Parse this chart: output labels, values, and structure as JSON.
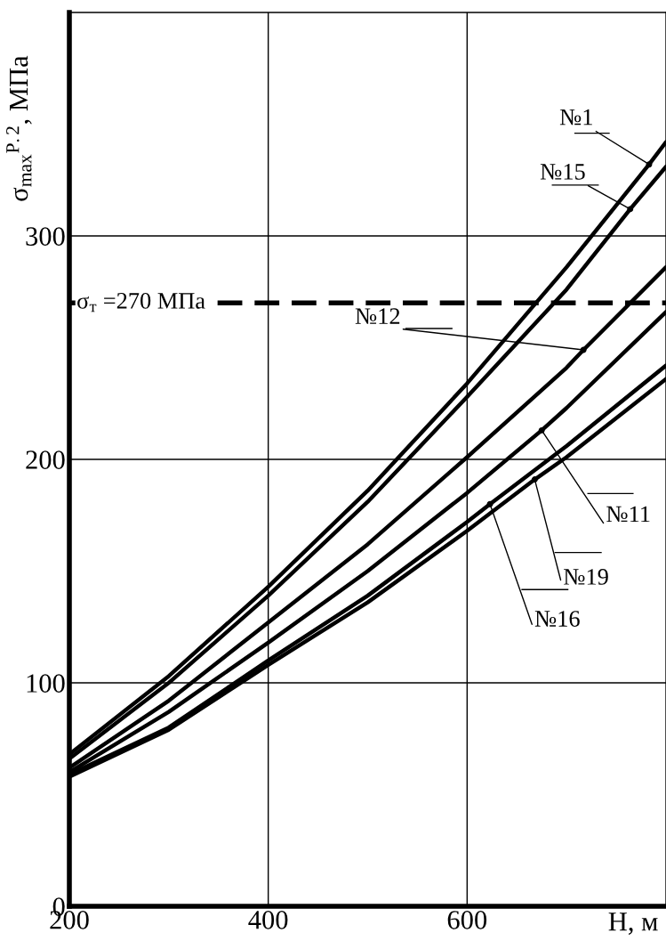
{
  "chart_data": {
    "type": "line",
    "xlabel": "H, м",
    "ylabel": "σ$_{max}$$^{P.2}$, МПа",
    "xlim": [
      200,
      800
    ],
    "xticks": [
      200,
      400,
      600
    ],
    "ylim": [
      0,
      400
    ],
    "yticks": [
      0,
      100,
      200,
      300
    ],
    "grid": true,
    "legend": "right",
    "marker": "none",
    "line_style": "solid",
    "series": [
      {
        "name": "№1",
        "color": "#000000",
        "x": [
          200,
          300,
          400,
          500,
          600,
          700,
          783,
          800
        ],
        "values": [
          68,
          103,
          143,
          186,
          234,
          286,
          332,
          342
        ]
      },
      {
        "name": "№15",
        "color": "#000000",
        "x": [
          200,
          300,
          400,
          500,
          600,
          700,
          764,
          800
        ],
        "values": [
          66,
          100,
          139,
          181,
          228,
          276,
          312,
          331
        ]
      },
      {
        "name": "№12",
        "color": "#000000",
        "x": [
          200,
          300,
          400,
          500,
          600,
          700,
          717,
          800
        ],
        "values": [
          62,
          92,
          127,
          162,
          201,
          241,
          249,
          286
        ]
      },
      {
        "name": "№11",
        "color": "#000000",
        "x": [
          200,
          300,
          400,
          500,
          600,
          675,
          700,
          800
        ],
        "values": [
          60,
          87,
          118,
          150,
          185,
          213,
          223,
          266
        ]
      },
      {
        "name": "№19",
        "color": "#000000",
        "x": [
          200,
          300,
          400,
          500,
          600,
          668,
          700,
          800
        ],
        "values": [
          58,
          79,
          108,
          136,
          168,
          191,
          201,
          236
        ]
      },
      {
        "name": "№16",
        "color": "#000000",
        "x": [
          200,
          300,
          400,
          500,
          600,
          623,
          700,
          800
        ],
        "values": [
          59,
          80,
          110,
          139,
          172,
          180,
          206,
          242
        ]
      }
    ],
    "ref_lines": [
      {
        "axis": "y",
        "value": 270,
        "label": "σ$_{т}$ =270 МПа",
        "color": "#000000",
        "line_style": "dashed"
      }
    ]
  }
}
